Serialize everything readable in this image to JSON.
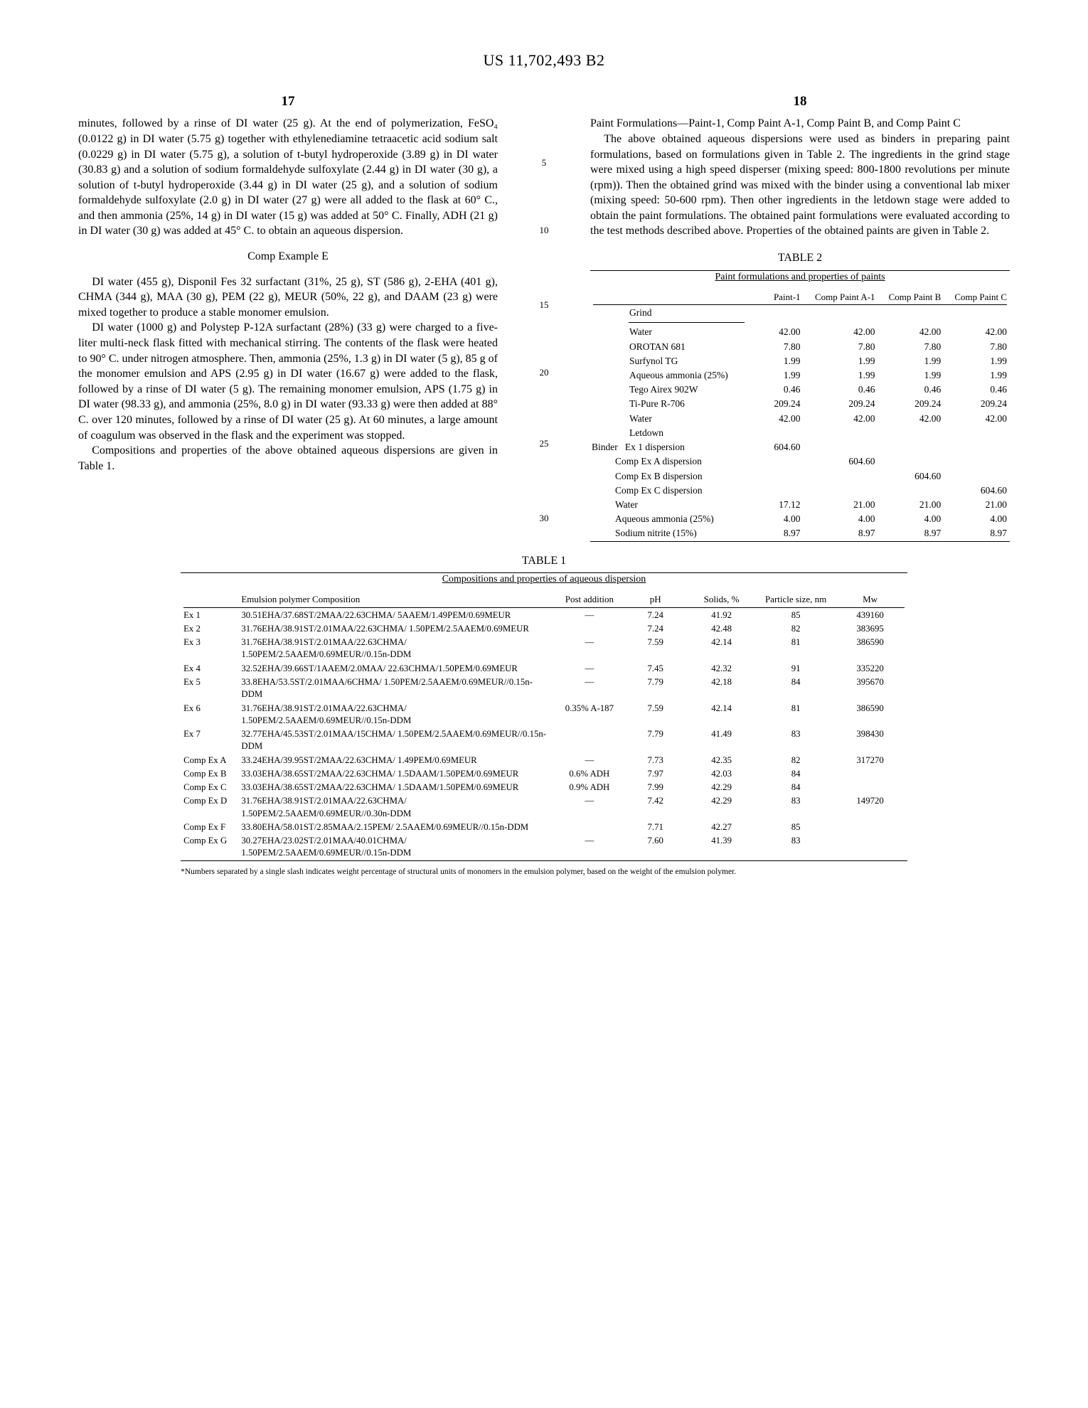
{
  "patent_number": "US 11,702,493 B2",
  "col_left_num": "17",
  "col_right_num": "18",
  "gutter_lines": {
    "g5": "5",
    "g10": "10",
    "g15": "15",
    "g20": "20",
    "g25": "25",
    "g30": "30"
  },
  "left": {
    "p1": "minutes, followed by a rinse of DI water (25 g). At the end of polymerization, FeSO₄ (0.0122 g) in DI water (5.75 g) together with ethylenediamine tetraacetic acid sodium salt (0.0229 g) in DI water (5.75 g), a solution of t-butyl hydroperoxide (3.89 g) in DI water (30.83 g) and a solution of sodium formaldehyde sulfoxylate (2.44 g) in DI water (30 g), a solution of t-butyl hydroperoxide (3.44 g) in DI water (25 g), and a solution of sodium formaldehyde sulfoxylate (2.0 g) in DI water (27 g) were all added to the flask at 60° C., and then ammonia (25%, 14 g) in DI water (15 g) was added at 50° C. Finally, ADH (21 g) in DI water (30 g) was added at 45° C. to obtain an aqueous dispersion.",
    "h1": "Comp Example E",
    "p2": "DI water (455 g), Disponil Fes 32 surfactant (31%, 25 g), ST (586 g), 2-EHA (401 g), CHMA (344 g), MAA (30 g), PEM (22 g), MEUR (50%, 22 g), and DAAM (23 g) were mixed together to produce a stable monomer emulsion.",
    "p3": "DI water (1000 g) and Polystep P-12A surfactant (28%) (33 g) were charged to a five-liter multi-neck flask fitted with mechanical stirring. The contents of the flask were heated to 90° C. under nitrogen atmosphere. Then, ammonia (25%, 1.3 g) in DI water (5 g), 85 g of the monomer emulsion and APS (2.95 g) in DI water (16.67 g) were added to the flask, followed by a rinse of DI water (5 g). The remaining monomer emulsion, APS (1.75 g) in DI water (98.33 g), and ammonia (25%, 8.0 g) in DI water (93.33 g) were then added at 88° C. over 120 minutes, followed by a rinse of DI water (25 g). At 60 minutes, a large amount of coagulum was observed in the flask and the experiment was stopped.",
    "p4": "Compositions and properties of the above obtained aqueous dispersions are given in Table 1."
  },
  "right": {
    "h": "Paint Formulations—Paint-1, Comp Paint A-1, Comp Paint B, and Comp Paint C",
    "p1": "The above obtained aqueous dispersions were used as binders in preparing paint formulations, based on formulations given in Table 2. The ingredients in the grind stage were mixed using a high speed disperser (mixing speed: 800-1800 revolutions per minute (rpm)). Then the obtained grind was mixed with the binder using a conventional lab mixer (mixing speed: 50-600 rpm). Then other ingredients in the letdown stage were added to obtain the paint formulations. The obtained paint formulations were evaluated according to the test methods described above. Properties of the obtained paints are given in Table 2."
  },
  "table1": {
    "title": "TABLE 1",
    "subtitle": "Compositions and properties of aqueous dispersion",
    "headers": [
      "",
      "Emulsion polymer Composition",
      "Post addition",
      "pH",
      "Solids, %",
      "Particle size, nm",
      "Mw"
    ],
    "rows": [
      [
        "Ex 1",
        "30.51EHA/37.68ST/2MAA/22.63CHMA/ 5AAEM/1.49PEM/0.69MEUR",
        "—",
        "7.24",
        "41.92",
        "85",
        "439160"
      ],
      [
        "Ex 2",
        "31.76EHA/38.91ST/2.01MAA/22.63CHMA/ 1.50PEM/2.5AAEM/0.69MEUR",
        "",
        "7.24",
        "42.48",
        "82",
        "383695"
      ],
      [
        "Ex 3",
        "31.76EHA/38.91ST/2.01MAA/22.63CHMA/ 1.50PEM/2.5AAEM/0.69MEUR//0.15n-DDM",
        "—",
        "7.59",
        "42.14",
        "81",
        "386590"
      ],
      [
        "Ex 4",
        "32.52EHA/39.66ST/1AAEM/2.0MAA/ 22.63CHMA/1.50PEM/0.69MEUR",
        "—",
        "7.45",
        "42.32",
        "91",
        "335220"
      ],
      [
        "Ex 5",
        "33.8EHA/53.5ST/2.01MAA/6CHMA/ 1.50PEM/2.5AAEM/0.69MEUR//0.15n-DDM",
        "—",
        "7.79",
        "42.18",
        "84",
        "395670"
      ],
      [
        "Ex 6",
        "31.76EHA/38.91ST/2.01MAA/22.63CHMA/ 1.50PEM/2.5AAEM/0.69MEUR//0.15n-DDM",
        "0.35% A-187",
        "7.59",
        "42.14",
        "81",
        "386590"
      ],
      [
        "Ex 7",
        "32.77EHA/45.53ST/2.01MAA/15CHMA/ 1.50PEM/2.5AAEM/0.69MEUR//0.15n-DDM",
        "",
        "7.79",
        "41.49",
        "83",
        "398430"
      ],
      [
        "Comp Ex A",
        "33.24EHA/39.95ST/2MAA/22.63CHMA/ 1.49PEM/0.69MEUR",
        "—",
        "7.73",
        "42.35",
        "82",
        "317270"
      ],
      [
        "Comp Ex B",
        "33.03EHA/38.65ST/2MAA/22.63CHMA/ 1.5DAAM/1.50PEM/0.69MEUR",
        "0.6% ADH",
        "7.97",
        "42.03",
        "84",
        ""
      ],
      [
        "Comp Ex C",
        "33.03EHA/38.65ST/2MAA/22.63CHMA/ 1.5DAAM/1.50PEM/0.69MEUR",
        "0.9% ADH",
        "7.99",
        "42.29",
        "84",
        ""
      ],
      [
        "Comp Ex D",
        "31.76EHA/38.91ST/2.01MAA/22.63CHMA/ 1.50PEM/2.5AAEM/0.69MEUR//0.30n-DDM",
        "—",
        "7.42",
        "42.29",
        "83",
        "149720"
      ],
      [
        "Comp Ex F",
        "33.80EHA/58.01ST/2.85MAA/2.15PEM/ 2.5AAEM/0.69MEUR//0.15n-DDM",
        "",
        "7.71",
        "42.27",
        "85",
        ""
      ],
      [
        "Comp Ex G",
        "30.27EHA/23.02ST/2.01MAA/40.01CHMA/ 1.50PEM/2.5AAEM/0.69MEUR//0.15n-DDM",
        "—",
        "7.60",
        "41.39",
        "83",
        ""
      ]
    ],
    "footnote": "*Numbers separated by a single slash indicates weight percentage of structural units of monomers in the emulsion polymer, based on the weight of the emulsion polymer."
  },
  "table2": {
    "title": "TABLE 2",
    "subtitle": "Paint formulations and properties of paints",
    "headers": [
      "",
      "Paint-1",
      "Comp Paint A-1",
      "Comp Paint B",
      "Comp Paint C"
    ],
    "grind_label": "Grind",
    "grind_rows": [
      [
        "Water",
        "42.00",
        "42.00",
        "42.00",
        "42.00"
      ],
      [
        "OROTAN 681",
        "7.80",
        "7.80",
        "7.80",
        "7.80"
      ],
      [
        "Surfynol TG",
        "1.99",
        "1.99",
        "1.99",
        "1.99"
      ],
      [
        "Aqueous ammonia (25%)",
        "1.99",
        "1.99",
        "1.99",
        "1.99"
      ],
      [
        "Tego Airex 902W",
        "0.46",
        "0.46",
        "0.46",
        "0.46"
      ],
      [
        "Ti-Pure R-706",
        "209.24",
        "209.24",
        "209.24",
        "209.24"
      ],
      [
        "Water",
        "42.00",
        "42.00",
        "42.00",
        "42.00"
      ]
    ],
    "letdown_label": "Letdown",
    "binder_label": "Binder",
    "binder_rows": [
      [
        "Ex 1 dispersion",
        "604.60",
        "",
        "",
        ""
      ],
      [
        "Comp Ex A dispersion",
        "",
        "604.60",
        "",
        ""
      ],
      [
        "Comp Ex B dispersion",
        "",
        "",
        "604.60",
        ""
      ],
      [
        "Comp Ex C dispersion",
        "",
        "",
        "",
        "604.60"
      ]
    ],
    "tail_rows": [
      [
        "Water",
        "17.12",
        "21.00",
        "21.00",
        "21.00"
      ],
      [
        "Aqueous ammonia (25%)",
        "4.00",
        "4.00",
        "4.00",
        "4.00"
      ],
      [
        "Sodium nitrite (15%)",
        "8.97",
        "8.97",
        "8.97",
        "8.97"
      ]
    ]
  }
}
